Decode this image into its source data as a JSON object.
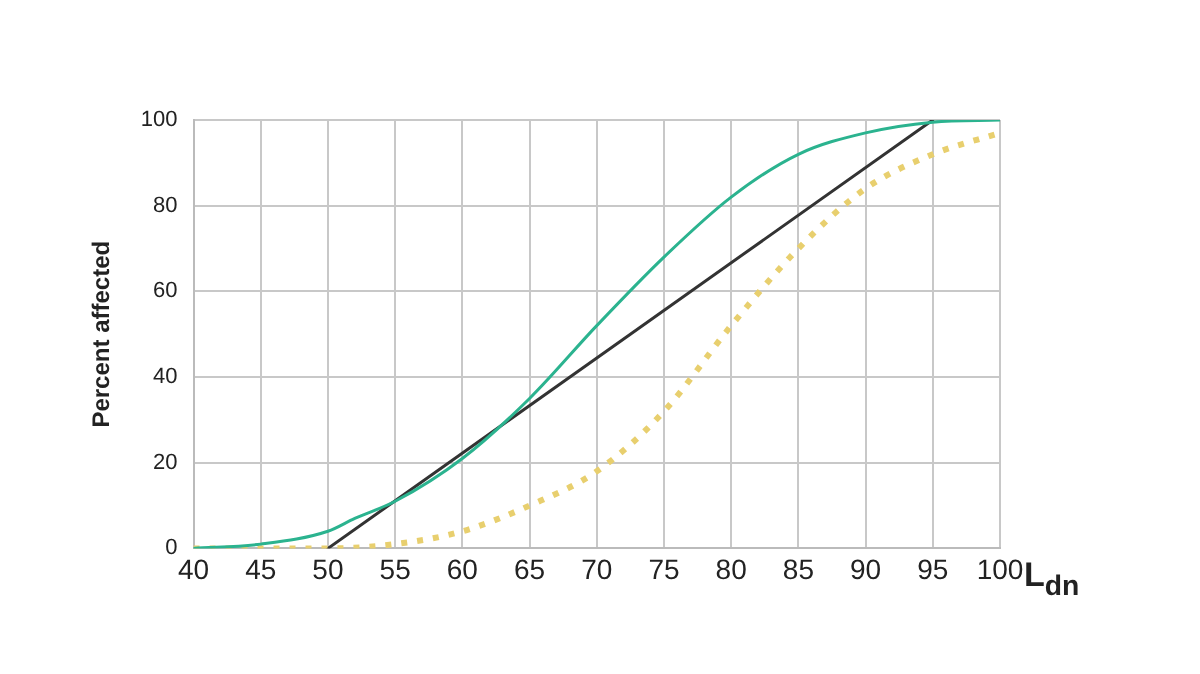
{
  "chart_data": {
    "type": "line",
    "xlabel": "L$_{dn}$",
    "ylabel": "Percent affected",
    "xlim": [
      40,
      100
    ],
    "xticks": [
      40,
      45,
      50,
      55,
      60,
      65,
      70,
      75,
      80,
      85,
      90,
      95,
      100
    ],
    "ylim": [
      0,
      100
    ],
    "yticks": [
      0,
      20,
      40,
      60,
      80,
      100
    ],
    "grid": true,
    "legend": false,
    "marker": "none",
    "series": [
      {
        "color": "#2bb38f",
        "line_style": "solid",
        "x": [
          40,
          45,
          50,
          52,
          55,
          60,
          65,
          70,
          75,
          80,
          85,
          90,
          95,
          100
        ],
        "values": [
          0,
          1,
          4,
          7,
          11,
          21,
          35,
          52,
          68,
          82,
          92,
          97,
          99.5,
          100
        ]
      },
      {
        "color": "#e8cf6e",
        "line_style": "dotted",
        "x": [
          40,
          45,
          50,
          55,
          60,
          65,
          70,
          75,
          80,
          85,
          90,
          95,
          100
        ],
        "values": [
          0,
          0,
          0,
          1,
          4,
          10,
          18,
          32,
          52,
          70,
          84,
          92,
          97
        ]
      },
      {
        "color": "#333333",
        "line_style": "solid",
        "x": [
          50,
          95
        ],
        "values": [
          0,
          100
        ]
      }
    ]
  }
}
